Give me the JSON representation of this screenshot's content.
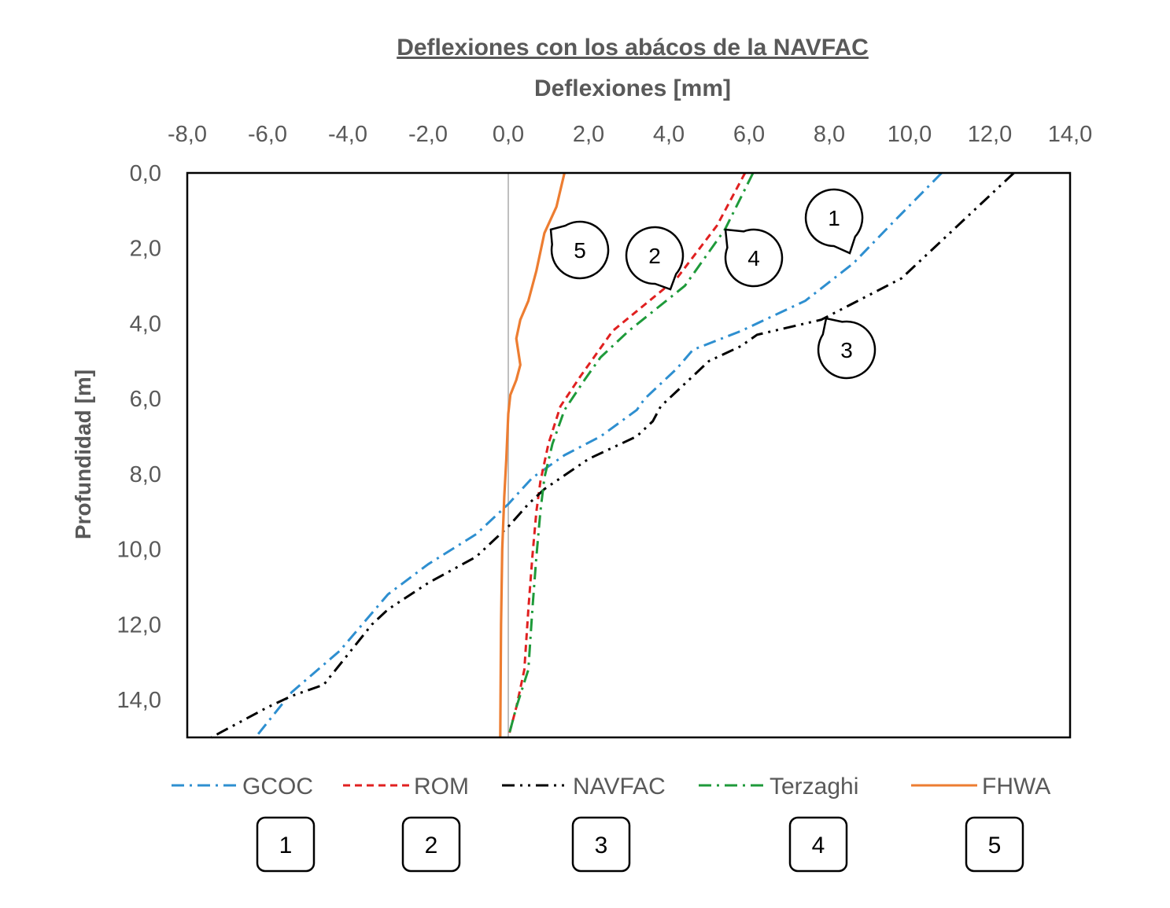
{
  "chart_data": {
    "type": "line",
    "title": "Deflexiones con los abácos de la NAVFAC",
    "xlabel": "Deflexiones [mm]",
    "ylabel": "Profundidad [m]",
    "xlim": [
      -8,
      14
    ],
    "ylim": [
      0,
      15
    ],
    "x_ticks": [
      "-8,0",
      "-6,0",
      "-4,0",
      "-2,0",
      "0,0",
      "2,0",
      "4,0",
      "6,0",
      "8,0",
      "10,0",
      "12,0",
      "14,0"
    ],
    "y_ticks": [
      "0,0",
      "2,0",
      "4,0",
      "6,0",
      "8,0",
      "10,0",
      "12,0",
      "14,0"
    ],
    "x_axis_position": "top",
    "y_axis_inverted": true,
    "grid": false,
    "legend_position": "bottom",
    "series": [
      {
        "name": "GCOC",
        "color": "#2E8FD0",
        "dash": "dash-dot",
        "points": [
          [
            10.8,
            0
          ],
          [
            9.6,
            1.3
          ],
          [
            8.6,
            2.4
          ],
          [
            7.4,
            3.4
          ],
          [
            5.8,
            4.2
          ],
          [
            4.6,
            4.7
          ],
          [
            4.2,
            5.2
          ],
          [
            3.4,
            6
          ],
          [
            3.2,
            6.3
          ],
          [
            2.3,
            7
          ],
          [
            1.4,
            7.5
          ],
          [
            0.6,
            8.1
          ],
          [
            0,
            8.8
          ],
          [
            -0.8,
            9.6
          ],
          [
            -2.0,
            10.4
          ],
          [
            -3.0,
            11.2
          ],
          [
            -3.4,
            11.7
          ],
          [
            -4.2,
            12.7
          ],
          [
            -5.4,
            13.8
          ],
          [
            -6.3,
            15
          ]
        ]
      },
      {
        "name": "ROM",
        "color": "#E02020",
        "dash": "dash",
        "points": [
          [
            5.9,
            0
          ],
          [
            5.2,
            1.4
          ],
          [
            4.2,
            2.8
          ],
          [
            2.6,
            4.2
          ],
          [
            2.2,
            4.8
          ],
          [
            1.8,
            5.4
          ],
          [
            1.3,
            6.2
          ],
          [
            1.0,
            7.2
          ],
          [
            0.8,
            8.2
          ],
          [
            0.7,
            9
          ],
          [
            0.6,
            10.2
          ],
          [
            0.5,
            11.6
          ],
          [
            0.4,
            13.2
          ],
          [
            0.2,
            14.2
          ],
          [
            0,
            15
          ]
        ]
      },
      {
        "name": "NAVFAC",
        "color": "#000000",
        "dash": "dash-dot-dot",
        "points": [
          [
            12.6,
            0
          ],
          [
            11.0,
            1.6
          ],
          [
            9.8,
            2.8
          ],
          [
            7.8,
            3.9
          ],
          [
            6.2,
            4.3
          ],
          [
            5.8,
            4.6
          ],
          [
            5.0,
            5.0
          ],
          [
            4.4,
            5.6
          ],
          [
            3.8,
            6.2
          ],
          [
            3.6,
            6.6
          ],
          [
            3.2,
            7.0
          ],
          [
            2.0,
            7.6
          ],
          [
            0.9,
            8.4
          ],
          [
            0.5,
            8.8
          ],
          [
            0,
            9.4
          ],
          [
            -0.8,
            10.2
          ],
          [
            -2.0,
            10.9
          ],
          [
            -3.0,
            11.6
          ],
          [
            -3.4,
            12.0
          ],
          [
            -4.0,
            12.8
          ],
          [
            -4.6,
            13.6
          ],
          [
            -5.4,
            13.9
          ],
          [
            -6.0,
            14.2
          ],
          [
            -7.4,
            15
          ]
        ]
      },
      {
        "name": "Terzaghi",
        "color": "#1E9A3A",
        "dash": "dash-dot",
        "points": [
          [
            6.1,
            0
          ],
          [
            5.4,
            1.5
          ],
          [
            4.4,
            3.0
          ],
          [
            3.0,
            4.2
          ],
          [
            2.3,
            4.9
          ],
          [
            1.9,
            5.5
          ],
          [
            1.4,
            6.3
          ],
          [
            1.1,
            7.2
          ],
          [
            0.9,
            8.1
          ],
          [
            0.8,
            9
          ],
          [
            0.7,
            10.2
          ],
          [
            0.6,
            11.6
          ],
          [
            0.5,
            13.2
          ],
          [
            0.2,
            14.2
          ],
          [
            0,
            15
          ]
        ]
      },
      {
        "name": "FHWA",
        "color": "#ED7D31",
        "dash": "solid",
        "points": [
          [
            1.4,
            0
          ],
          [
            1.2,
            0.9
          ],
          [
            0.9,
            1.6
          ],
          [
            0.7,
            2.6
          ],
          [
            0.5,
            3.4
          ],
          [
            0.3,
            3.9
          ],
          [
            0.2,
            4.4
          ],
          [
            0.3,
            5.1
          ],
          [
            0.2,
            5.5
          ],
          [
            0.05,
            5.9
          ],
          [
            0,
            6.4
          ],
          [
            -0.05,
            7.6
          ],
          [
            -0.1,
            8.6
          ],
          [
            -0.15,
            10
          ],
          [
            -0.18,
            12
          ],
          [
            -0.2,
            15
          ]
        ]
      }
    ],
    "callouts": [
      {
        "label": "1",
        "series": "GCOC"
      },
      {
        "label": "2",
        "series": "ROM"
      },
      {
        "label": "3",
        "series": "NAVFAC"
      },
      {
        "label": "4",
        "series": "Terzaghi"
      },
      {
        "label": "5",
        "series": "FHWA"
      }
    ],
    "legend_boxes": [
      "1",
      "2",
      "3",
      "4",
      "5"
    ]
  }
}
